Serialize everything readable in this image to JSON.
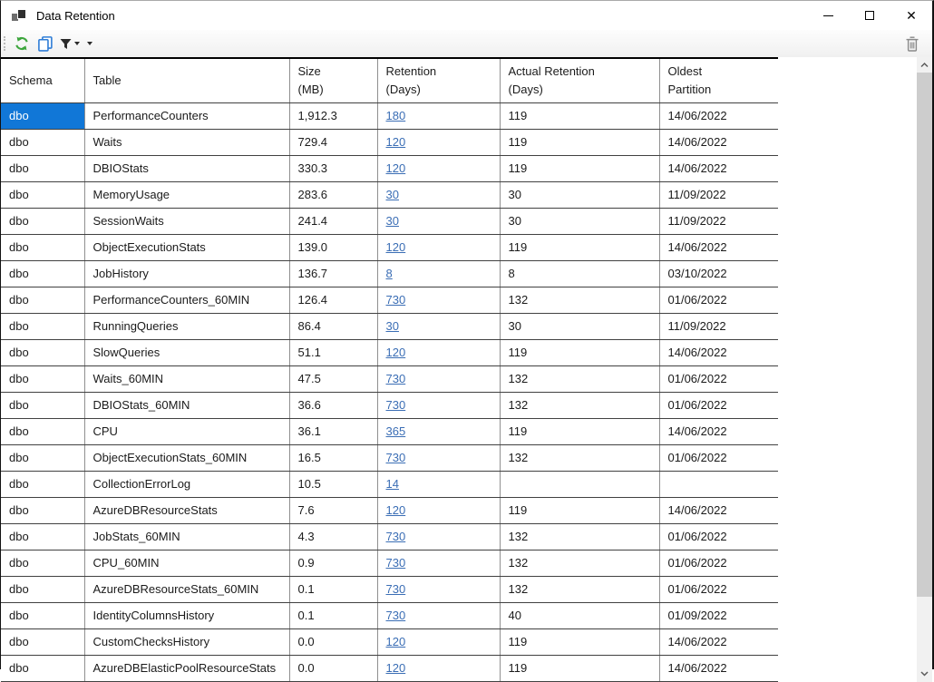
{
  "window": {
    "title": "Data Retention",
    "controls": {
      "minimize": "minimize",
      "maximize": "maximize",
      "close": "close"
    }
  },
  "toolbar": {
    "icons": [
      {
        "name": "refresh-icon"
      },
      {
        "name": "copy-icon"
      },
      {
        "name": "filter-icon"
      },
      {
        "name": "filter-dropdown-arrow-icon"
      },
      {
        "name": "toolbar-dropdown-arrow-icon"
      },
      {
        "name": "delete-icon"
      }
    ]
  },
  "colors": {
    "selection_bg": "#1177d7",
    "selection_text": "#ffffff",
    "link": "#3b6eb5",
    "refresh_green": "#3da63d",
    "copy_blue": "#2e7cd6"
  },
  "table": {
    "columns": [
      {
        "label": "Schema"
      },
      {
        "label": "Table"
      },
      {
        "label": "Size\n(MB)"
      },
      {
        "label": "Retention\n(Days)"
      },
      {
        "label": "Actual Retention\n(Days)"
      },
      {
        "label": "Oldest\nPartition"
      }
    ],
    "selected_cell": {
      "row": 0,
      "column": "Schema"
    },
    "rows": [
      {
        "schema": "dbo",
        "table": "PerformanceCounters",
        "size_mb": "1,912.3",
        "retention_days": "180",
        "actual_retention_days": "119",
        "oldest_partition": "14/06/2022"
      },
      {
        "schema": "dbo",
        "table": "Waits",
        "size_mb": "729.4",
        "retention_days": "120",
        "actual_retention_days": "119",
        "oldest_partition": "14/06/2022"
      },
      {
        "schema": "dbo",
        "table": "DBIOStats",
        "size_mb": "330.3",
        "retention_days": "120",
        "actual_retention_days": "119",
        "oldest_partition": "14/06/2022"
      },
      {
        "schema": "dbo",
        "table": "MemoryUsage",
        "size_mb": "283.6",
        "retention_days": "30",
        "actual_retention_days": "30",
        "oldest_partition": "11/09/2022"
      },
      {
        "schema": "dbo",
        "table": "SessionWaits",
        "size_mb": "241.4",
        "retention_days": "30",
        "actual_retention_days": "30",
        "oldest_partition": "11/09/2022"
      },
      {
        "schema": "dbo",
        "table": "ObjectExecutionStats",
        "size_mb": "139.0",
        "retention_days": "120",
        "actual_retention_days": "119",
        "oldest_partition": "14/06/2022"
      },
      {
        "schema": "dbo",
        "table": "JobHistory",
        "size_mb": "136.7",
        "retention_days": "8",
        "actual_retention_days": "8",
        "oldest_partition": "03/10/2022"
      },
      {
        "schema": "dbo",
        "table": "PerformanceCounters_60MIN",
        "size_mb": "126.4",
        "retention_days": "730",
        "actual_retention_days": "132",
        "oldest_partition": "01/06/2022"
      },
      {
        "schema": "dbo",
        "table": "RunningQueries",
        "size_mb": "86.4",
        "retention_days": "30",
        "actual_retention_days": "30",
        "oldest_partition": "11/09/2022"
      },
      {
        "schema": "dbo",
        "table": "SlowQueries",
        "size_mb": "51.1",
        "retention_days": "120",
        "actual_retention_days": "119",
        "oldest_partition": "14/06/2022"
      },
      {
        "schema": "dbo",
        "table": "Waits_60MIN",
        "size_mb": "47.5",
        "retention_days": "730",
        "actual_retention_days": "132",
        "oldest_partition": "01/06/2022"
      },
      {
        "schema": "dbo",
        "table": "DBIOStats_60MIN",
        "size_mb": "36.6",
        "retention_days": "730",
        "actual_retention_days": "132",
        "oldest_partition": "01/06/2022"
      },
      {
        "schema": "dbo",
        "table": "CPU",
        "size_mb": "36.1",
        "retention_days": "365",
        "actual_retention_days": "119",
        "oldest_partition": "14/06/2022"
      },
      {
        "schema": "dbo",
        "table": "ObjectExecutionStats_60MIN",
        "size_mb": "16.5",
        "retention_days": "730",
        "actual_retention_days": "132",
        "oldest_partition": "01/06/2022"
      },
      {
        "schema": "dbo",
        "table": "CollectionErrorLog",
        "size_mb": "10.5",
        "retention_days": "14",
        "actual_retention_days": "",
        "oldest_partition": ""
      },
      {
        "schema": "dbo",
        "table": "AzureDBResourceStats",
        "size_mb": "7.6",
        "retention_days": "120",
        "actual_retention_days": "119",
        "oldest_partition": "14/06/2022"
      },
      {
        "schema": "dbo",
        "table": "JobStats_60MIN",
        "size_mb": "4.3",
        "retention_days": "730",
        "actual_retention_days": "132",
        "oldest_partition": "01/06/2022"
      },
      {
        "schema": "dbo",
        "table": "CPU_60MIN",
        "size_mb": "0.9",
        "retention_days": "730",
        "actual_retention_days": "132",
        "oldest_partition": "01/06/2022"
      },
      {
        "schema": "dbo",
        "table": "AzureDBResourceStats_60MIN",
        "size_mb": "0.1",
        "retention_days": "730",
        "actual_retention_days": "132",
        "oldest_partition": "01/06/2022"
      },
      {
        "schema": "dbo",
        "table": "IdentityColumnsHistory",
        "size_mb": "0.1",
        "retention_days": "730",
        "actual_retention_days": "40",
        "oldest_partition": "01/09/2022"
      },
      {
        "schema": "dbo",
        "table": "CustomChecksHistory",
        "size_mb": "0.0",
        "retention_days": "120",
        "actual_retention_days": "119",
        "oldest_partition": "14/06/2022"
      },
      {
        "schema": "dbo",
        "table": "AzureDBElasticPoolResourceStats",
        "size_mb": "0.0",
        "retention_days": "120",
        "actual_retention_days": "119",
        "oldest_partition": "14/06/2022"
      }
    ]
  }
}
